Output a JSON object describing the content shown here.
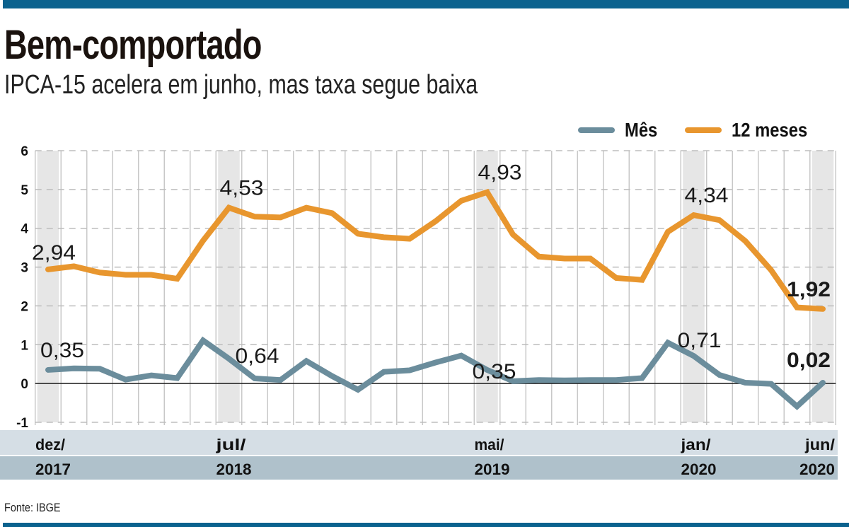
{
  "header": {
    "title": "Bem-comportado",
    "subtitle": "IPCA-15 acelera em junho, mas taxa segue baixa"
  },
  "source": "Fonte: IBGE",
  "colors": {
    "bar": "#0b628e",
    "mes": "#6b8d9c",
    "doze_meses": "#e8962e",
    "band": "#e6e6e6",
    "axis_row1": "#d5dee5",
    "axis_row2": "#afc1cb"
  },
  "chart_data": {
    "type": "line",
    "title": "Bem-comportado",
    "subtitle": "IPCA-15 acelera em junho, mas taxa segue baixa",
    "xlabel": "",
    "ylabel": "",
    "ylim": [
      -1,
      6
    ],
    "yticks": [
      "6",
      "5",
      "4",
      "3",
      "2",
      "1",
      "0",
      "-1"
    ],
    "grid": true,
    "legend": "top-right",
    "x": [
      "dez/2017",
      "jan/2018",
      "fev/2018",
      "mar/2018",
      "abr/2018",
      "mai/2018",
      "jun/2018",
      "jul/2018",
      "ago/2018",
      "set/2018",
      "out/2018",
      "nov/2018",
      "dez/2018",
      "jan/2019",
      "fev/2019",
      "mar/2019",
      "abr/2019",
      "mai/2019",
      "jun/2019",
      "jul/2019",
      "ago/2019",
      "set/2019",
      "out/2019",
      "nov/2019",
      "dez/2019",
      "jan/2020",
      "fev/2020",
      "mar/2020",
      "abr/2020",
      "mai/2020",
      "jun/2020"
    ],
    "highlighted": [
      0,
      7,
      17,
      25,
      30
    ],
    "xtick_labels": [
      {
        "index": 0,
        "month": "dez/",
        "year": "2017"
      },
      {
        "index": 7,
        "month": "jul/",
        "year": "2018"
      },
      {
        "index": 17,
        "month": "mai/",
        "year": "2019"
      },
      {
        "index": 25,
        "month": "jan/",
        "year": "2020"
      },
      {
        "index": 30,
        "month": "jun/",
        "year": "2020"
      }
    ],
    "series": [
      {
        "name": "Mês",
        "color": "#6b8d9c",
        "values": [
          0.35,
          0.39,
          0.38,
          0.1,
          0.21,
          0.14,
          1.11,
          0.64,
          0.13,
          0.09,
          0.58,
          0.19,
          -0.16,
          0.3,
          0.34,
          0.54,
          0.72,
          0.35,
          0.06,
          0.09,
          0.08,
          0.09,
          0.09,
          0.14,
          1.05,
          0.71,
          0.22,
          0.02,
          -0.01,
          -0.59,
          0.02
        ],
        "labels": [
          {
            "index": 0,
            "text": "0,35"
          },
          {
            "index": 7,
            "text": "0,64"
          },
          {
            "index": 17,
            "text": "0,35"
          },
          {
            "index": 25,
            "text": "0,71"
          },
          {
            "index": 30,
            "text": "0,02",
            "bold": true
          }
        ]
      },
      {
        "name": "12 meses",
        "color": "#e8962e",
        "values": [
          2.94,
          3.02,
          2.86,
          2.8,
          2.8,
          2.7,
          3.68,
          4.53,
          4.3,
          4.28,
          4.53,
          4.39,
          3.86,
          3.77,
          3.73,
          4.18,
          4.71,
          4.93,
          3.84,
          3.27,
          3.22,
          3.22,
          2.72,
          2.67,
          3.91,
          4.34,
          4.21,
          3.67,
          2.92,
          1.96,
          1.92
        ],
        "labels": [
          {
            "index": 0,
            "text": "2,94"
          },
          {
            "index": 7,
            "text": "4,53"
          },
          {
            "index": 17,
            "text": "4,93"
          },
          {
            "index": 25,
            "text": "4,34"
          },
          {
            "index": 30,
            "text": "1,92",
            "bold": true
          }
        ]
      }
    ]
  }
}
